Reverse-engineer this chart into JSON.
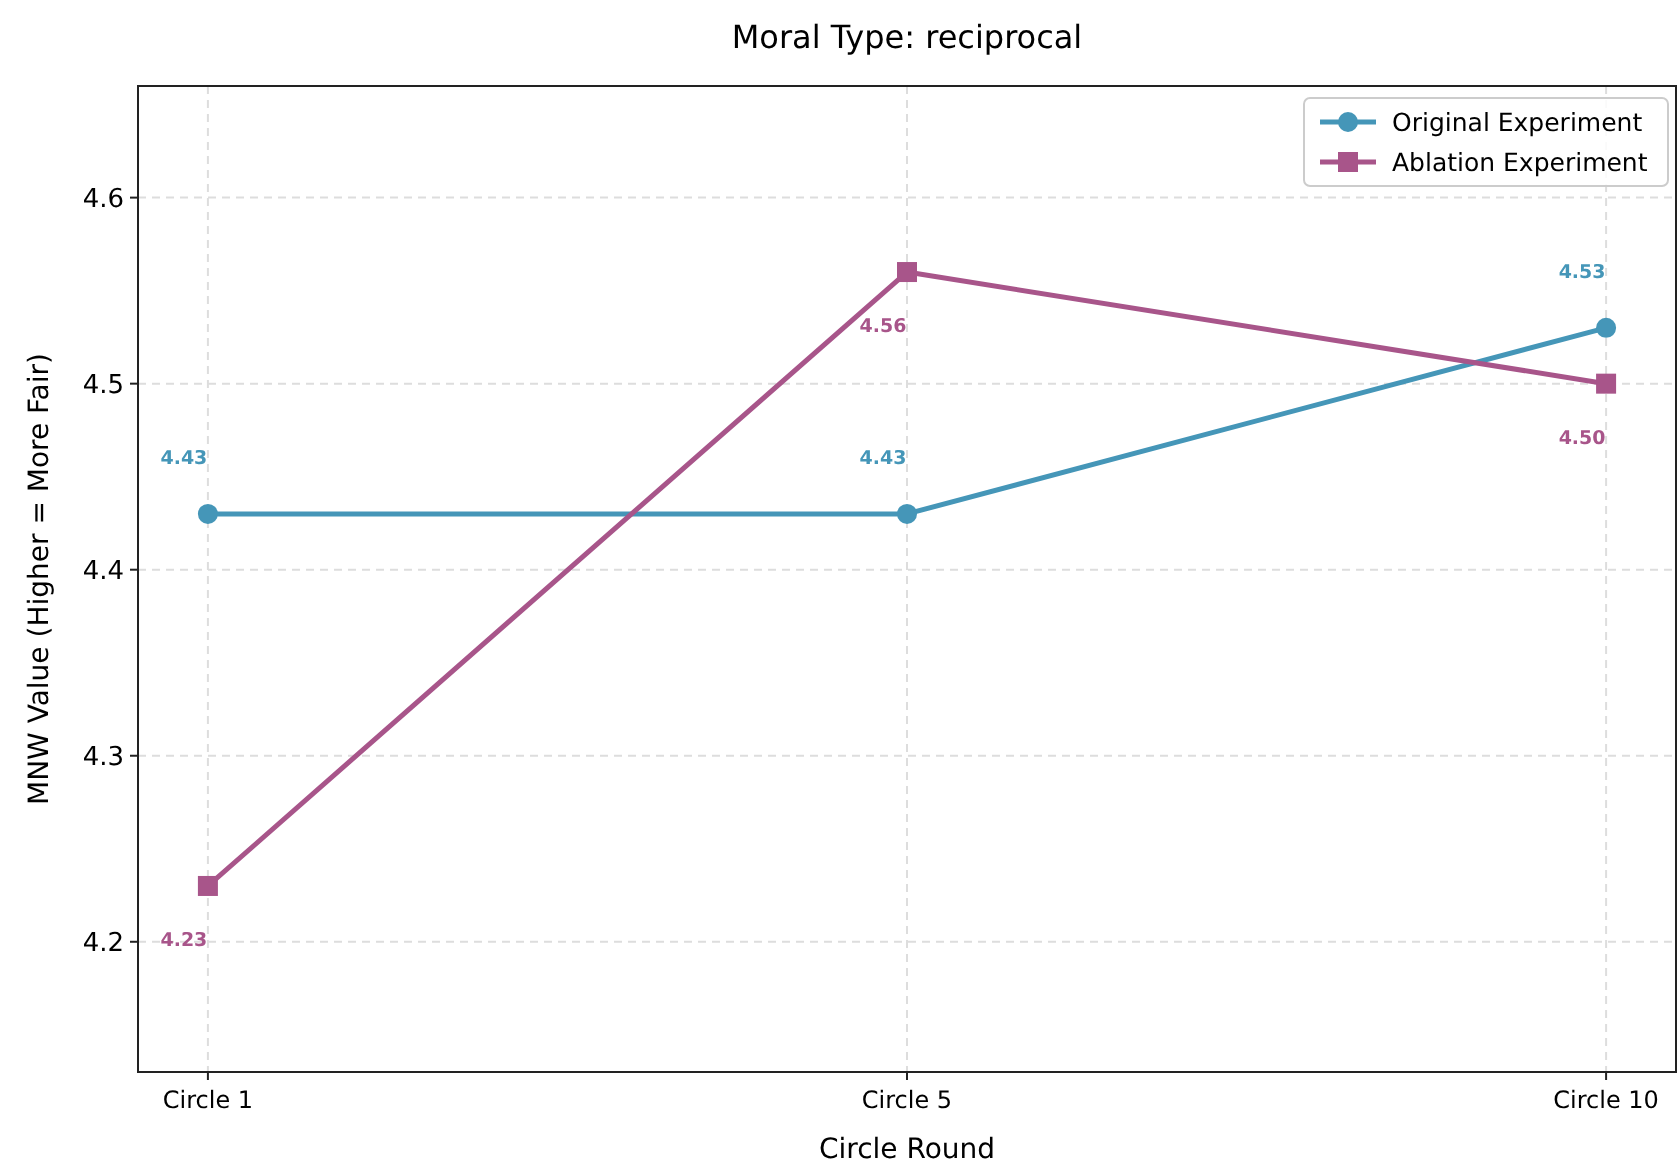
{
  "chart_data": {
    "type": "line",
    "title": "Moral Type: reciprocal",
    "xlabel": "Circle Round",
    "ylabel": "MNW Value (Higher = More Fair)",
    "categories": [
      "Circle 1",
      "Circle 5",
      "Circle 10"
    ],
    "ylim": [
      4.13,
      4.66
    ],
    "yticks": [
      4.2,
      4.3,
      4.4,
      4.5,
      4.6
    ],
    "grid": true,
    "legend": "top right",
    "line_style": "solid",
    "series": [
      {
        "name": "Original Experiment",
        "color": "#4596b8",
        "marker": "circle",
        "values": [
          4.43,
          4.43,
          4.53
        ],
        "value_labels": [
          "4.43",
          "4.43",
          "4.53"
        ]
      },
      {
        "name": "Ablation Experiment",
        "color": "#a8558a",
        "marker": "square",
        "values": [
          4.23,
          4.56,
          4.5
        ],
        "value_labels": [
          "4.23",
          "4.56",
          "4.50"
        ]
      }
    ]
  }
}
